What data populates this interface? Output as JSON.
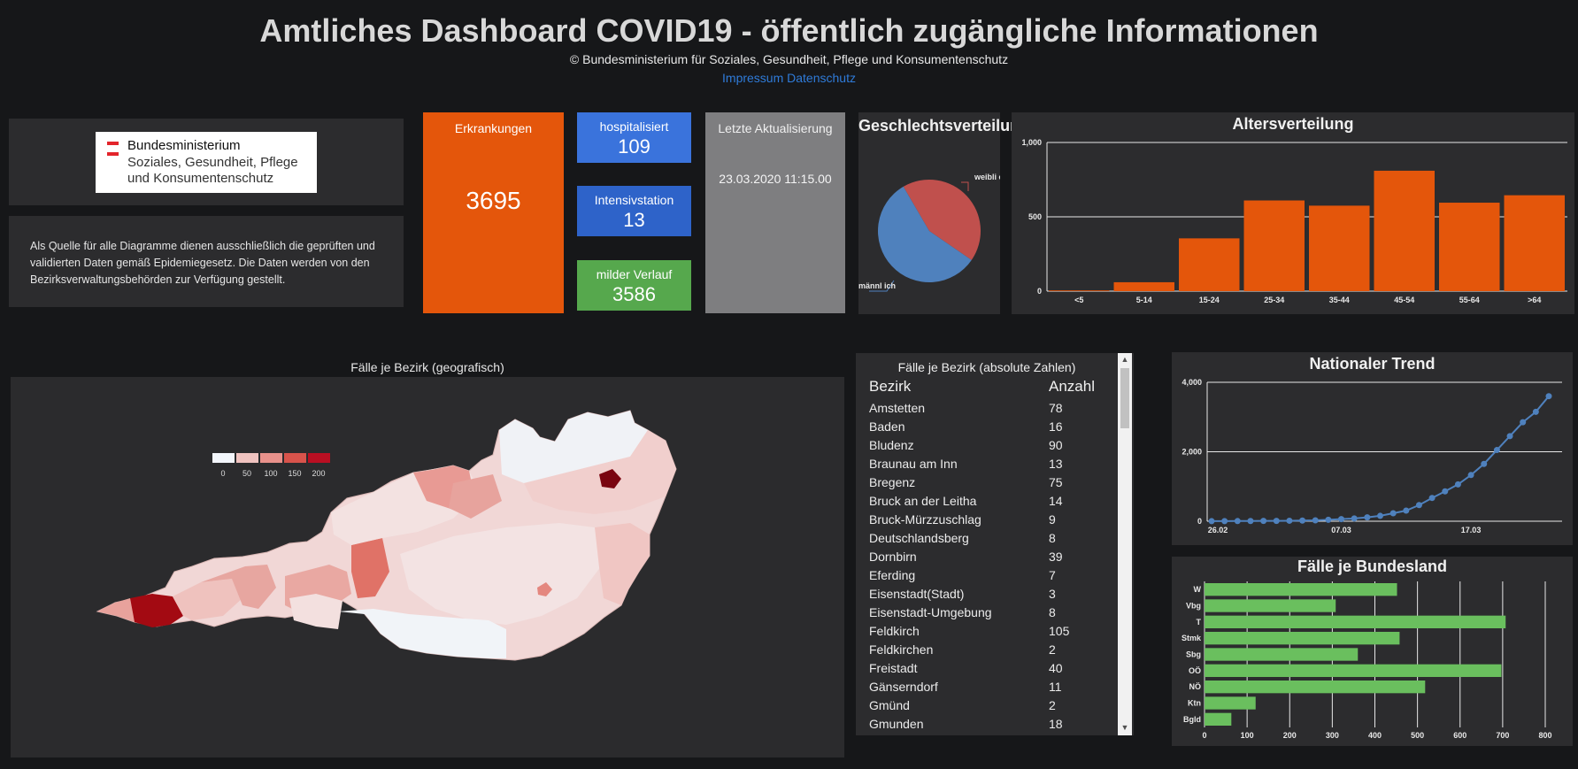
{
  "header": {
    "title": "Amtliches Dashboard COVID19 - öffentlich zugängliche Informationen",
    "copyright": "© Bundesministerium für Soziales, Gesundheit, Pflege und Konsumentenschutz",
    "link_impressum": "Impressum",
    "link_datenschutz": "Datenschutz"
  },
  "logo": {
    "line1": "Bundesministerium",
    "line2": "Soziales, Gesundheit, Pflege und Konsumentenschutz"
  },
  "source_text": "Als Quelle für alle Diagramme dienen ausschließlich die geprüften und validierten Daten gemäß Epidemiegesetz. Die Daten werden von den Bezirksverwaltungsbehörden zur Verfügung gestellt.",
  "tiles": {
    "erkrankungen": {
      "label": "Erkrankungen",
      "value": "3695",
      "color": "#e4560b"
    },
    "hospitalisiert": {
      "label": "hospitalisiert",
      "value": "109",
      "color": "#3a73dc"
    },
    "intensivstation": {
      "label": "Intensivstation",
      "value": "13",
      "color": "#2e63c9"
    },
    "milder_verlauf": {
      "label": "milder Verlauf",
      "value": "3586",
      "color": "#56a84d"
    },
    "aktualisierung": {
      "label": "Letzte Aktualisierung",
      "value": "23.03.2020 11:15.00",
      "color": "#7e7e80"
    }
  },
  "gender": {
    "title": "Geschlechtsverteilung",
    "label_w": "weibli ch",
    "label_m": "männl ich"
  },
  "map": {
    "title": "Fälle je Bezirk (geografisch)",
    "legend_ticks": [
      "0",
      "50",
      "100",
      "150",
      "200"
    ],
    "legend_colors": [
      "#f3f6fb",
      "#f0c3c0",
      "#e8918b",
      "#d8534b",
      "#b90f22"
    ]
  },
  "bezirk_table": {
    "title": "Fälle je Bezirk (absolute Zahlen)",
    "col_name": "Bezirk",
    "col_count": "Anzahl",
    "rows": [
      {
        "name": "Amstetten",
        "count": "78"
      },
      {
        "name": "Baden",
        "count": "16"
      },
      {
        "name": "Bludenz",
        "count": "90"
      },
      {
        "name": "Braunau am Inn",
        "count": "13"
      },
      {
        "name": "Bregenz",
        "count": "75"
      },
      {
        "name": "Bruck an der Leitha",
        "count": "14"
      },
      {
        "name": "Bruck-Mürzzuschlag",
        "count": "9"
      },
      {
        "name": "Deutschlandsberg",
        "count": "8"
      },
      {
        "name": "Dornbirn",
        "count": "39"
      },
      {
        "name": "Eferding",
        "count": "7"
      },
      {
        "name": "Eisenstadt(Stadt)",
        "count": "3"
      },
      {
        "name": "Eisenstadt-Umgebung",
        "count": "8"
      },
      {
        "name": "Feldkirch",
        "count": "105"
      },
      {
        "name": "Feldkirchen",
        "count": "2"
      },
      {
        "name": "Freistadt",
        "count": "40"
      },
      {
        "name": "Gänserndorf",
        "count": "11"
      },
      {
        "name": "Gmünd",
        "count": "2"
      },
      {
        "name": "Gmunden",
        "count": "18"
      }
    ]
  },
  "chart_data": [
    {
      "id": "geschlecht",
      "type": "pie",
      "title": "Geschlechtsverteilung",
      "categories": [
        "weiblich",
        "männlich"
      ],
      "values": [
        43,
        57
      ],
      "colors": [
        "#c0504d",
        "#4f81bd"
      ]
    },
    {
      "id": "alter",
      "type": "bar",
      "title": "Altersverteilung",
      "categories": [
        "<5",
        "5-14",
        "15-24",
        "25-34",
        "35-44",
        "45-54",
        "55-64",
        ">64"
      ],
      "values": [
        5,
        60,
        355,
        610,
        575,
        810,
        595,
        645
      ],
      "yticks": [
        "0",
        "500",
        "1,000"
      ],
      "ylim": [
        0,
        1000
      ],
      "color": "#e4560b"
    },
    {
      "id": "trend",
      "type": "line",
      "title": "Nationaler Trend",
      "x": [
        "26.02",
        "27.02",
        "28.02",
        "29.02",
        "01.03",
        "02.03",
        "03.03",
        "04.03",
        "05.03",
        "06.03",
        "07.03",
        "08.03",
        "09.03",
        "10.03",
        "11.03",
        "12.03",
        "13.03",
        "14.03",
        "15.03",
        "16.03",
        "17.03",
        "18.03",
        "19.03",
        "20.03",
        "21.03",
        "22.03",
        "23.03"
      ],
      "y": [
        2,
        3,
        5,
        7,
        9,
        10,
        14,
        19,
        25,
        42,
        60,
        80,
        112,
        155,
        230,
        305,
        465,
        670,
        860,
        1060,
        1330,
        1650,
        2050,
        2450,
        2850,
        3150,
        3600
      ],
      "xticks": [
        "26.02",
        "07.03",
        "17.03"
      ],
      "yticks": [
        "0",
        "2,000",
        "4,000"
      ],
      "ylim": [
        0,
        4000
      ],
      "color": "#4f81bd"
    },
    {
      "id": "bundesland",
      "type": "bar",
      "orientation": "horizontal",
      "title": "Fälle je Bundesland",
      "categories": [
        "W",
        "Vbg",
        "T",
        "Stmk",
        "Sbg",
        "OÖ",
        "NÖ",
        "Ktn",
        "Bgld"
      ],
      "values": [
        452,
        308,
        707,
        458,
        360,
        697,
        518,
        120,
        63
      ],
      "xticks": [
        "0",
        "100",
        "200",
        "300",
        "400",
        "500",
        "600",
        "700",
        "800"
      ],
      "xlim": [
        0,
        800
      ],
      "color": "#6abf5e"
    }
  ]
}
